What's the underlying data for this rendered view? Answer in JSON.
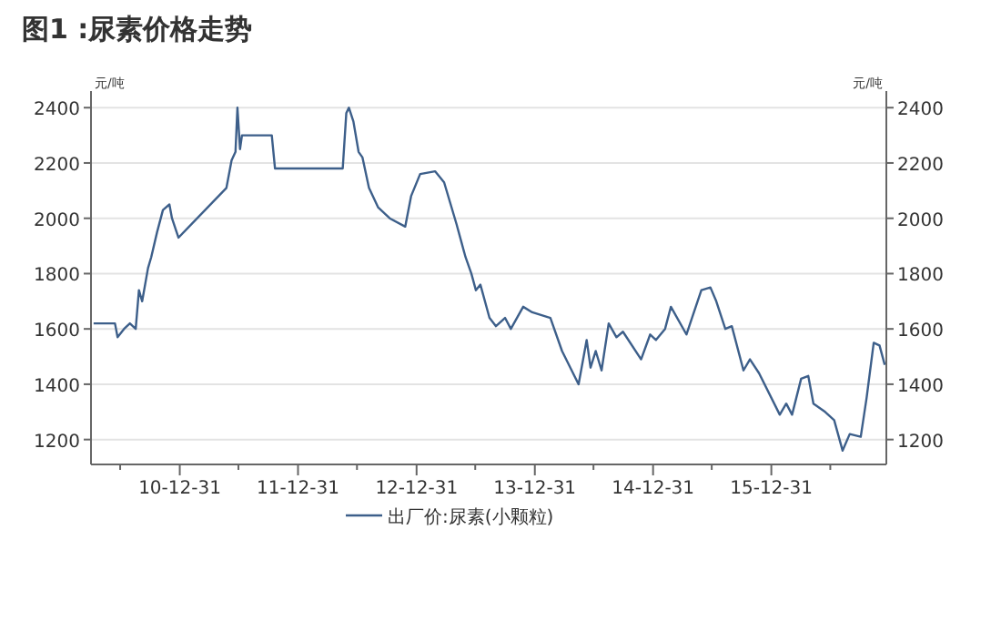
{
  "chart_data": {
    "type": "line",
    "title": "图1 :尿素价格走势",
    "ylabel": "元/吨",
    "y2label": "元/吨",
    "x": [
      "2010-04-09",
      "2010-06-14",
      "2010-06-22",
      "2010-07-12",
      "2010-07-30",
      "2010-08-17",
      "2010-08-27",
      "2010-09-06",
      "2010-09-24",
      "2010-10-04",
      "2010-10-22",
      "2010-11-09",
      "2010-11-29",
      "2010-12-07",
      "2010-12-27",
      "2011-05-24",
      "2011-06-09",
      "2011-06-21",
      "2011-06-27",
      "2011-07-05",
      "2011-07-11",
      "2011-10-11",
      "2011-10-21",
      "2012-05-17",
      "2012-05-28",
      "2012-06-05",
      "2012-06-19",
      "2012-07-05",
      "2012-07-17",
      "2012-08-06",
      "2012-09-03",
      "2012-09-21",
      "2012-10-09",
      "2012-11-26",
      "2012-12-14",
      "2013-01-11",
      "2013-02-26",
      "2013-03-26",
      "2013-05-03",
      "2013-05-31",
      "2013-06-18",
      "2013-07-02",
      "2013-07-16",
      "2013-08-13",
      "2013-09-02",
      "2013-09-30",
      "2013-10-18",
      "2013-11-25",
      "2013-12-23",
      "2014-02-17",
      "2014-03-25",
      "2014-05-15",
      "2014-06-09",
      "2014-06-21",
      "2014-07-07",
      "2014-07-25",
      "2014-08-16",
      "2014-09-09",
      "2014-09-29",
      "2014-11-24",
      "2014-12-22",
      "2015-01-09",
      "2015-02-06",
      "2015-02-24",
      "2015-04-13",
      "2015-05-29",
      "2015-06-26",
      "2015-07-14",
      "2015-08-11",
      "2015-08-31",
      "2015-10-06",
      "2015-10-26",
      "2015-11-23",
      "2016-01-26",
      "2016-02-15",
      "2016-03-04",
      "2016-04-01",
      "2016-04-23",
      "2016-05-09",
      "2016-06-14",
      "2016-07-12",
      "2016-08-07",
      "2016-08-29",
      "2016-10-02",
      "2016-10-20",
      "2016-11-11",
      "2016-11-29",
      "2016-12-15"
    ],
    "series": [
      {
        "name": "出厂价:尿素(小颗粒)",
        "color": "#3d5f8a",
        "values": [
          1620,
          1620,
          1570,
          1600,
          1620,
          1600,
          1740,
          1700,
          1820,
          1860,
          1950,
          2030,
          2050,
          2000,
          1930,
          2110,
          2210,
          2240,
          2400,
          2250,
          2300,
          2300,
          2180,
          2180,
          2380,
          2400,
          2350,
          2240,
          2220,
          2110,
          2040,
          2020,
          2000,
          1970,
          2080,
          2160,
          2170,
          2130,
          1980,
          1860,
          1800,
          1740,
          1760,
          1640,
          1610,
          1640,
          1600,
          1680,
          1660,
          1640,
          1520,
          1400,
          1560,
          1460,
          1520,
          1450,
          1620,
          1570,
          1590,
          1490,
          1580,
          1560,
          1600,
          1680,
          1580,
          1740,
          1750,
          1700,
          1600,
          1610,
          1450,
          1490,
          1440,
          1290,
          1330,
          1290,
          1420,
          1430,
          1330,
          1300,
          1270,
          1160,
          1220,
          1210,
          1350,
          1550,
          1540,
          1470
        ]
      }
    ],
    "xlim": [
      "2010-04-01",
      "2016-12-20"
    ],
    "xticks": [
      {
        "value": "2010-06-30",
        "label": null
      },
      {
        "value": "2010-12-31",
        "label": "10-12-31"
      },
      {
        "value": "2011-06-30",
        "label": null
      },
      {
        "value": "2011-12-31",
        "label": "11-12-31"
      },
      {
        "value": "2012-06-30",
        "label": null
      },
      {
        "value": "2012-12-31",
        "label": "12-12-31"
      },
      {
        "value": "2013-06-30",
        "label": null
      },
      {
        "value": "2013-12-31",
        "label": "13-12-31"
      },
      {
        "value": "2014-06-30",
        "label": null
      },
      {
        "value": "2014-12-31",
        "label": "14-12-31"
      },
      {
        "value": "2015-06-30",
        "label": null
      },
      {
        "value": "2015-12-31",
        "label": "15-12-31"
      },
      {
        "value": "2016-06-30",
        "label": null
      }
    ],
    "ylim": [
      1110,
      2460
    ],
    "yticks": [
      1200,
      1400,
      1600,
      1800,
      2000,
      2200,
      2400
    ],
    "y2lim": [
      1110,
      2460
    ],
    "y2ticks": [
      1200,
      1400,
      1600,
      1800,
      2000,
      2200,
      2400
    ],
    "grid": "y",
    "legend": "bottom"
  }
}
